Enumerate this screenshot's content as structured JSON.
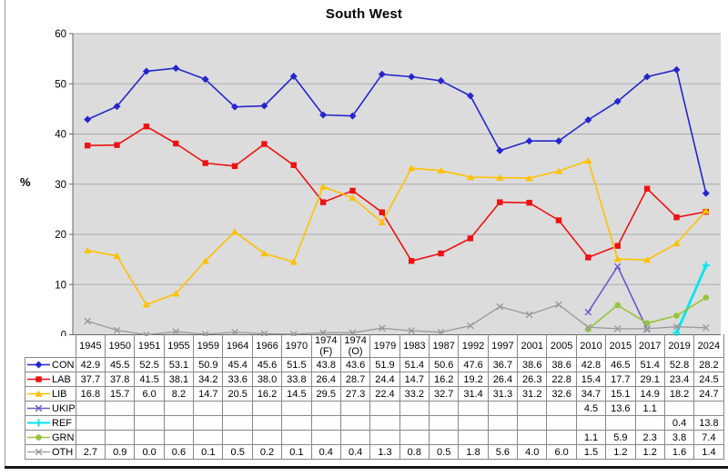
{
  "window": {
    "left_border_color": "#9a9a9a",
    "bottom_border_color": "#151515"
  },
  "chart_data": {
    "type": "line",
    "title": "South West",
    "ylabel": "%",
    "ylim": [
      0,
      60
    ],
    "ytick_step": 10,
    "grid": true,
    "legend_position": "table-left",
    "plot_bg": "#dcdcdc",
    "gridline_color": "#ababab",
    "axis_color": "#666666",
    "categories": [
      "1945",
      "1950",
      "1951",
      "1955",
      "1959",
      "1964",
      "1966",
      "1970",
      "1974 (F)",
      "1974 (O)",
      "1979",
      "1983",
      "1987",
      "1992",
      "1997",
      "2001",
      "2005",
      "2010",
      "2015",
      "2017",
      "2019",
      "2024"
    ],
    "series": [
      {
        "name": "CON",
        "color": "#2626cc",
        "marker": "diamond",
        "line_width": 1.6,
        "values": [
          42.9,
          45.5,
          52.5,
          53.1,
          50.9,
          45.4,
          45.6,
          51.5,
          43.8,
          43.6,
          51.9,
          51.4,
          50.6,
          47.6,
          36.7,
          38.6,
          38.6,
          42.8,
          46.5,
          51.4,
          52.8,
          28.2
        ]
      },
      {
        "name": "LAB",
        "color": "#ee1111",
        "marker": "square",
        "line_width": 1.6,
        "values": [
          37.7,
          37.8,
          41.5,
          38.1,
          34.2,
          33.6,
          38.0,
          33.8,
          26.4,
          28.7,
          24.4,
          14.7,
          16.2,
          19.2,
          26.4,
          26.3,
          22.8,
          15.4,
          17.7,
          29.1,
          23.4,
          24.5
        ]
      },
      {
        "name": "LIB",
        "color": "#ffc000",
        "marker": "triangle",
        "line_width": 1.6,
        "values": [
          16.8,
          15.7,
          6.0,
          8.2,
          14.7,
          20.5,
          16.2,
          14.5,
          29.5,
          27.3,
          22.4,
          33.2,
          32.7,
          31.4,
          31.3,
          31.2,
          32.6,
          34.7,
          15.1,
          14.9,
          18.2,
          24.7
        ]
      },
      {
        "name": "UKIP",
        "color": "#6a5acd",
        "marker": "xcross",
        "line_width": 1.6,
        "values": [
          null,
          null,
          null,
          null,
          null,
          null,
          null,
          null,
          null,
          null,
          null,
          null,
          null,
          null,
          null,
          null,
          null,
          4.5,
          13.6,
          1.1,
          null,
          null
        ]
      },
      {
        "name": "REF",
        "color": "#00e6f2",
        "marker": "plus",
        "line_width": 2.8,
        "values": [
          null,
          null,
          null,
          null,
          null,
          null,
          null,
          null,
          null,
          null,
          null,
          null,
          null,
          null,
          null,
          null,
          null,
          null,
          null,
          null,
          0.4,
          13.8
        ]
      },
      {
        "name": "GRN",
        "color": "#96c43c",
        "marker": "circle",
        "line_width": 1.6,
        "values": [
          null,
          null,
          null,
          null,
          null,
          null,
          null,
          null,
          null,
          null,
          null,
          null,
          null,
          null,
          null,
          null,
          null,
          1.1,
          5.9,
          2.3,
          3.8,
          7.4
        ]
      },
      {
        "name": "OTH",
        "color": "#999999",
        "marker": "xcross",
        "line_width": 1.3,
        "values": [
          2.7,
          0.9,
          0.0,
          0.6,
          0.1,
          0.5,
          0.2,
          0.1,
          0.4,
          0.4,
          1.3,
          0.8,
          0.5,
          1.8,
          5.6,
          4.0,
          6.0,
          1.5,
          1.2,
          1.2,
          1.6,
          1.4
        ]
      }
    ]
  }
}
